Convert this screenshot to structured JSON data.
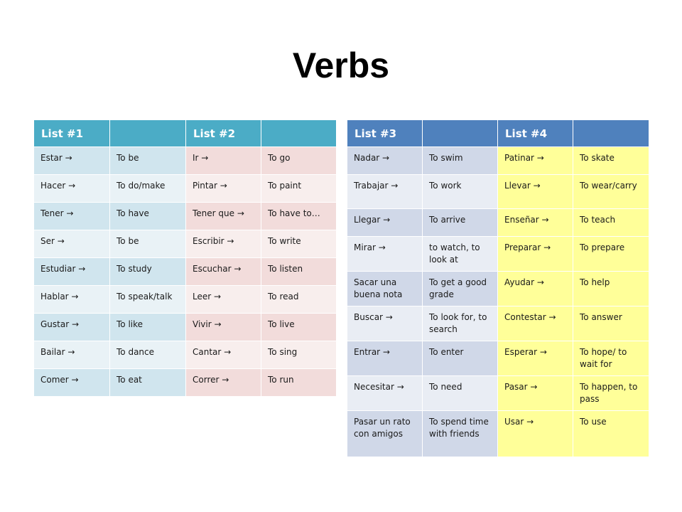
{
  "title": "Verbs",
  "colors": {
    "table1_header": "#4bacc6",
    "table1_blue_dark": "#d0e5ee",
    "table1_blue_light": "#e9f2f6",
    "table1_pink_dark": "#f2dcdb",
    "table1_pink_light": "#f8eeed",
    "table2_header": "#4f81bd",
    "table2_blue_dark": "#d0d8e8",
    "table2_blue_light": "#e9edf4",
    "table2_yellow": "#ffff99"
  },
  "table1": {
    "headers": [
      "List #1",
      "",
      "List #2",
      ""
    ],
    "rows": [
      [
        "Estar    →",
        "To be",
        "Ir      →",
        "To go"
      ],
      [
        "Hacer    →",
        "To do/make",
        "Pintar  →",
        "To paint"
      ],
      [
        "Tener     →",
        "To have",
        "Tener que →",
        "To have to…"
      ],
      [
        "Ser      →",
        "To be",
        "Escribir →",
        "To write"
      ],
      [
        "Estudiar   →",
        "To study",
        "Escuchar →",
        "To listen"
      ],
      [
        "Hablar   →",
        "To speak/talk",
        "Leer   →",
        "To read"
      ],
      [
        "Gustar     →",
        "To like",
        "Vivir   →",
        "To live"
      ],
      [
        "Bailar    →",
        "To dance",
        "Cantar  →",
        "To sing"
      ],
      [
        "Comer  →",
        "To eat",
        "Correr   →",
        "To run"
      ]
    ]
  },
  "table2": {
    "headers": [
      "List #3",
      "",
      "List #4",
      ""
    ],
    "rows": [
      [
        "Nadar  →",
        "To swim",
        "Patinar  →",
        "To skate"
      ],
      [
        "Trabajar  →",
        "To work",
        "Llevar  →",
        "To wear/carry"
      ],
      [
        "Llegar   →",
        "To arrive",
        "Enseñar  →",
        "To teach"
      ],
      [
        "Mirar    →",
        "to watch, to look at",
        "Preparar  →",
        "To prepare"
      ],
      [
        "Sacar una buena nota",
        "To get a good grade",
        "Ayudar    →",
        "To help"
      ],
      [
        "Buscar  →",
        "To look for, to search",
        "Contestar  →",
        "To answer"
      ],
      [
        "Entrar   →",
        "To enter",
        "Esperar   →",
        "To hope/ to wait for"
      ],
      [
        "Necesitar →",
        "To need",
        "Pasar   →",
        "To happen, to pass"
      ],
      [
        "Pasar un rato con amigos",
        "To spend time with friends",
        "Usar   →",
        "To use"
      ]
    ]
  }
}
